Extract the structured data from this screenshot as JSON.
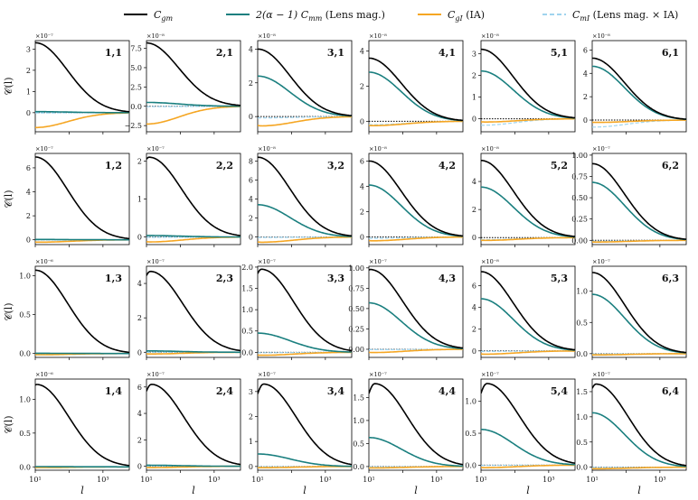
{
  "chart_data": {
    "type": "line",
    "layout": "4 rows x 6 columns grid of panels",
    "legend": [
      {
        "name": "C_gm",
        "label_main": "C",
        "label_sub": "gm",
        "color": "#000000",
        "dashed": false
      },
      {
        "name": "2(α−1) C_mm (Lens mag.)",
        "label_pre": "2(α − 1) C",
        "label_sub": "mm",
        "label_post": " (Lens mag.)",
        "color": "#1a7f7f",
        "dashed": false
      },
      {
        "name": "C_gI (IA)",
        "label_main": "C",
        "label_sub": "gI",
        "label_post": " (IA)",
        "color": "#f5a623",
        "dashed": false
      },
      {
        "name": "C_mI (Lens mag. × IA)",
        "label_main": "C",
        "label_sub": "mI",
        "label_post": " (Lens mag. × IA)",
        "color": "#9fd4ee",
        "dashed": true
      }
    ],
    "legend_placement": "top-center",
    "xlabel": "l",
    "ylabel": "𝒞(l)",
    "xscale": "log",
    "xlim": [
      10,
      6000
    ],
    "xticks": [
      "10¹",
      "10³"
    ],
    "panels": [
      {
        "label": "1,1",
        "row": 1,
        "col": 1,
        "exponent": "×10⁻⁷",
        "ylim": [
          -0.9,
          3.4
        ],
        "yticks": [
          {
            "v": 0,
            "t": "0"
          },
          {
            "v": 1,
            "t": "1"
          },
          {
            "v": 2,
            "t": "2"
          },
          {
            "v": 3,
            "t": "3"
          }
        ],
        "gm": {
          "a": 3.3,
          "peak": 10
        },
        "mm": {
          "a": 0.05,
          "peak": 10
        },
        "gI": {
          "a": -0.7,
          "peak": 10
        },
        "mI": {
          "a": -0.01,
          "peak": 10
        }
      },
      {
        "label": "2,1",
        "row": 1,
        "col": 2,
        "exponent": "×10⁻⁸",
        "ylim": [
          -3.3,
          8.5
        ],
        "yticks": [
          {
            "v": -2.5,
            "t": "−2.5"
          },
          {
            "v": 0,
            "t": "0.0"
          },
          {
            "v": 2.5,
            "t": "2.5"
          },
          {
            "v": 5,
            "t": "5.0"
          },
          {
            "v": 7.5,
            "t": "7.5"
          }
        ],
        "gm": {
          "a": 8.2,
          "peak": 10
        },
        "mm": {
          "a": 0.5,
          "peak": 10
        },
        "gI": {
          "a": -2.3,
          "peak": 10
        },
        "mI": {
          "a": -0.05,
          "peak": 10
        }
      },
      {
        "label": "3,1",
        "row": 1,
        "col": 3,
        "exponent": "×10⁻⁸",
        "ylim": [
          -0.9,
          4.5
        ],
        "yticks": [
          {
            "v": 0,
            "t": "0"
          },
          {
            "v": 2,
            "t": "2"
          },
          {
            "v": 4,
            "t": "4"
          }
        ],
        "gm": {
          "a": 4.0,
          "peak": 10
        },
        "mm": {
          "a": 2.4,
          "peak": 10
        },
        "gI": {
          "a": -0.55,
          "peak": 13
        },
        "mI": {
          "a": -0.08,
          "peak": 13
        }
      },
      {
        "label": "4,1",
        "row": 1,
        "col": 4,
        "exponent": "×10⁻⁸",
        "ylim": [
          -0.6,
          4.6
        ],
        "yticks": [
          {
            "v": 0,
            "t": "0"
          },
          {
            "v": 2,
            "t": "2"
          },
          {
            "v": 4,
            "t": "4"
          }
        ],
        "gm": {
          "a": 3.6,
          "peak": 10
        },
        "mm": {
          "a": 2.8,
          "peak": 10
        },
        "gI": {
          "a": -0.25,
          "peak": 13
        },
        "mI": {
          "a": -0.2,
          "peak": 13
        }
      },
      {
        "label": "5,1",
        "row": 1,
        "col": 5,
        "exponent": "×10⁻⁸",
        "ylim": [
          -0.6,
          3.6
        ],
        "yticks": [
          {
            "v": 0,
            "t": "0"
          },
          {
            "v": 1,
            "t": "1"
          },
          {
            "v": 2,
            "t": "2"
          },
          {
            "v": 3,
            "t": "3"
          }
        ],
        "gm": {
          "a": 3.2,
          "peak": 10
        },
        "mm": {
          "a": 2.2,
          "peak": 10
        },
        "gI": {
          "a": -0.15,
          "peak": 13
        },
        "mI": {
          "a": -0.3,
          "peak": 11
        }
      },
      {
        "label": "6,1",
        "row": 1,
        "col": 6,
        "exponent": "×10⁻⁸",
        "ylim": [
          -1.0,
          6.8
        ],
        "yticks": [
          {
            "v": 0,
            "t": "0"
          },
          {
            "v": 2,
            "t": "2"
          },
          {
            "v": 4,
            "t": "4"
          },
          {
            "v": 6,
            "t": "6"
          }
        ],
        "gm": {
          "a": 5.3,
          "peak": 10
        },
        "mm": {
          "a": 4.6,
          "peak": 10
        },
        "gI": {
          "a": -0.2,
          "peak": 13
        },
        "mI": {
          "a": -0.6,
          "peak": 11
        }
      },
      {
        "label": "1,2",
        "row": 2,
        "col": 1,
        "exponent": "×10⁻⁷",
        "ylim": [
          -0.4,
          7.2
        ],
        "yticks": [
          {
            "v": 0,
            "t": "0"
          },
          {
            "v": 2,
            "t": "2"
          },
          {
            "v": 4,
            "t": "4"
          },
          {
            "v": 6,
            "t": "6"
          }
        ],
        "gm": {
          "a": 6.9,
          "peak": 10
        },
        "mm": {
          "a": 0.03,
          "peak": 10
        },
        "gI": {
          "a": -0.2,
          "peak": 13
        },
        "mI": {
          "a": -0.01,
          "peak": 10
        }
      },
      {
        "label": "2,2",
        "row": 2,
        "col": 2,
        "exponent": "×10⁻⁷",
        "ylim": [
          -0.2,
          2.2
        ],
        "yticks": [
          {
            "v": 0,
            "t": "0"
          },
          {
            "v": 1,
            "t": "1"
          },
          {
            "v": 2,
            "t": "2"
          }
        ],
        "gm": {
          "a": 2.1,
          "peak": 12
        },
        "mm": {
          "a": 0.04,
          "peak": 10
        },
        "gI": {
          "a": -0.13,
          "peak": 13
        },
        "mI": {
          "a": -0.01,
          "peak": 10
        }
      },
      {
        "label": "3,2",
        "row": 2,
        "col": 3,
        "exponent": "×10⁻⁸",
        "ylim": [
          -0.8,
          8.8
        ],
        "yticks": [
          {
            "v": 0,
            "t": "0"
          },
          {
            "v": 2,
            "t": "2"
          },
          {
            "v": 4,
            "t": "4"
          },
          {
            "v": 6,
            "t": "6"
          },
          {
            "v": 8,
            "t": "8"
          }
        ],
        "gm": {
          "a": 8.4,
          "peak": 10
        },
        "mm": {
          "a": 3.4,
          "peak": 10
        },
        "gI": {
          "a": -0.55,
          "peak": 13
        },
        "mI": {
          "a": -0.05,
          "peak": 13
        }
      },
      {
        "label": "4,2",
        "row": 2,
        "col": 4,
        "exponent": "×10⁻⁸",
        "ylim": [
          -0.6,
          6.6
        ],
        "yticks": [
          {
            "v": 0,
            "t": "0"
          },
          {
            "v": 2,
            "t": "2"
          },
          {
            "v": 4,
            "t": "4"
          },
          {
            "v": 6,
            "t": "6"
          }
        ],
        "gm": {
          "a": 6.0,
          "peak": 10
        },
        "mm": {
          "a": 4.1,
          "peak": 10
        },
        "gI": {
          "a": -0.3,
          "peak": 13
        },
        "mI": {
          "a": -0.1,
          "peak": 13
        }
      },
      {
        "label": "5,2",
        "row": 2,
        "col": 5,
        "exponent": "×10⁻⁸",
        "ylim": [
          -0.5,
          6.0
        ],
        "yticks": [
          {
            "v": 0,
            "t": "0"
          },
          {
            "v": 2,
            "t": "2"
          },
          {
            "v": 4,
            "t": "4"
          }
        ],
        "gm": {
          "a": 5.5,
          "peak": 10
        },
        "mm": {
          "a": 3.6,
          "peak": 10
        },
        "gI": {
          "a": -0.2,
          "peak": 13
        },
        "mI": {
          "a": -0.15,
          "peak": 13
        }
      },
      {
        "label": "6,2",
        "row": 2,
        "col": 6,
        "exponent": "×10⁻⁷",
        "ylim": [
          -0.05,
          1.02
        ],
        "yticks": [
          {
            "v": 0,
            "t": "0.00"
          },
          {
            "v": 0.25,
            "t": "0.25"
          },
          {
            "v": 0.5,
            "t": "0.50"
          },
          {
            "v": 0.75,
            "t": "0.75"
          },
          {
            "v": 1.0,
            "t": "1.00"
          }
        ],
        "gm": {
          "a": 0.9,
          "peak": 10
        },
        "mm": {
          "a": 0.68,
          "peak": 10
        },
        "gI": {
          "a": -0.02,
          "peak": 13
        },
        "mI": {
          "a": -0.01,
          "peak": 13
        }
      },
      {
        "label": "1,3",
        "row": 3,
        "col": 1,
        "exponent": "×10⁻⁶",
        "ylim": [
          -0.05,
          1.12
        ],
        "yticks": [
          {
            "v": 0,
            "t": "0.0"
          },
          {
            "v": 0.5,
            "t": "0.5"
          },
          {
            "v": 1.0,
            "t": "1.0"
          }
        ],
        "gm": {
          "a": 1.07,
          "peak": 10
        },
        "mm": {
          "a": 0.003,
          "peak": 10
        },
        "gI": {
          "a": -0.015,
          "peak": 13
        },
        "mI": {
          "a": 0,
          "peak": 10
        }
      },
      {
        "label": "2,3",
        "row": 3,
        "col": 2,
        "exponent": "×10⁻⁷",
        "ylim": [
          -0.3,
          5.0
        ],
        "yticks": [
          {
            "v": 0,
            "t": "0"
          },
          {
            "v": 2,
            "t": "2"
          },
          {
            "v": 4,
            "t": "4"
          }
        ],
        "gm": {
          "a": 4.7,
          "peak": 13
        },
        "mm": {
          "a": 0.08,
          "peak": 10
        },
        "gI": {
          "a": -0.1,
          "peak": 13
        },
        "mI": {
          "a": -0.01,
          "peak": 10
        }
      },
      {
        "label": "3,3",
        "row": 3,
        "col": 3,
        "exponent": "×10⁻⁷",
        "ylim": [
          -0.12,
          2.02
        ],
        "yticks": [
          {
            "v": 0,
            "t": "0.0"
          },
          {
            "v": 0.5,
            "t": "0.5"
          },
          {
            "v": 1.0,
            "t": "1.0"
          },
          {
            "v": 1.5,
            "t": "1.5"
          },
          {
            "v": 2.0,
            "t": "2.0"
          }
        ],
        "gm": {
          "a": 1.95,
          "peak": 13
        },
        "mm": {
          "a": 0.45,
          "peak": 10
        },
        "gI": {
          "a": -0.07,
          "peak": 13
        },
        "mI": {
          "a": -0.01,
          "peak": 13
        }
      },
      {
        "label": "4,3",
        "row": 3,
        "col": 4,
        "exponent": "×10⁻⁷",
        "ylim": [
          -0.1,
          1.02
        ],
        "yticks": [
          {
            "v": 0,
            "t": "0.00"
          },
          {
            "v": 0.25,
            "t": "0.25"
          },
          {
            "v": 0.5,
            "t": "0.50"
          },
          {
            "v": 0.75,
            "t": "0.75"
          },
          {
            "v": 1.0,
            "t": "1.00"
          }
        ],
        "gm": {
          "a": 0.98,
          "peak": 11
        },
        "mm": {
          "a": 0.57,
          "peak": 10
        },
        "gI": {
          "a": -0.04,
          "peak": 13
        },
        "mI": {
          "a": -0.005,
          "peak": 13
        }
      },
      {
        "label": "5,3",
        "row": 3,
        "col": 5,
        "exponent": "×10⁻⁸",
        "ylim": [
          -0.6,
          7.8
        ],
        "yticks": [
          {
            "v": 0,
            "t": "0"
          },
          {
            "v": 2,
            "t": "2"
          },
          {
            "v": 4,
            "t": "4"
          },
          {
            "v": 6,
            "t": "6"
          }
        ],
        "gm": {
          "a": 7.3,
          "peak": 10
        },
        "mm": {
          "a": 4.8,
          "peak": 10
        },
        "gI": {
          "a": -0.3,
          "peak": 13
        },
        "mI": {
          "a": -0.05,
          "peak": 13
        }
      },
      {
        "label": "6,3",
        "row": 3,
        "col": 6,
        "exponent": "×10⁻⁷",
        "ylim": [
          -0.06,
          1.4
        ],
        "yticks": [
          {
            "v": 0,
            "t": "0.0"
          },
          {
            "v": 0.5,
            "t": "0.5"
          },
          {
            "v": 1.0,
            "t": "1.0"
          }
        ],
        "gm": {
          "a": 1.3,
          "peak": 10
        },
        "mm": {
          "a": 0.95,
          "peak": 10
        },
        "gI": {
          "a": -0.02,
          "peak": 13
        },
        "mI": {
          "a": -0.005,
          "peak": 13
        }
      },
      {
        "label": "1,4",
        "row": 4,
        "col": 1,
        "exponent": "×10⁻⁶",
        "ylim": [
          -0.05,
          1.3
        ],
        "yticks": [
          {
            "v": 0,
            "t": "0.0"
          },
          {
            "v": 0.5,
            "t": "0.5"
          },
          {
            "v": 1.0,
            "t": "1.0"
          }
        ],
        "gm": {
          "a": 1.22,
          "peak": 11
        },
        "mm": {
          "a": 0.003,
          "peak": 10
        },
        "gI": {
          "a": -0.01,
          "peak": 13
        },
        "mI": {
          "a": 0,
          "peak": 10
        }
      },
      {
        "label": "2,4",
        "row": 4,
        "col": 2,
        "exponent": "×10⁻⁷",
        "ylim": [
          -0.3,
          6.6
        ],
        "yticks": [
          {
            "v": 0,
            "t": "0"
          },
          {
            "v": 2,
            "t": "2"
          },
          {
            "v": 4,
            "t": "4"
          },
          {
            "v": 6,
            "t": "6"
          }
        ],
        "gm": {
          "a": 6.2,
          "peak": 14
        },
        "mm": {
          "a": 0.08,
          "peak": 10
        },
        "gI": {
          "a": -0.1,
          "peak": 13
        },
        "mI": {
          "a": -0.01,
          "peak": 10
        }
      },
      {
        "label": "3,4",
        "row": 4,
        "col": 3,
        "exponent": "×10⁻⁷",
        "ylim": [
          -0.15,
          3.5
        ],
        "yticks": [
          {
            "v": 0,
            "t": "0"
          },
          {
            "v": 1,
            "t": "1"
          },
          {
            "v": 2,
            "t": "2"
          },
          {
            "v": 3,
            "t": "3"
          }
        ],
        "gm": {
          "a": 3.3,
          "peak": 15
        },
        "mm": {
          "a": 0.5,
          "peak": 10
        },
        "gI": {
          "a": -0.05,
          "peak": 13
        },
        "mI": {
          "a": -0.01,
          "peak": 13
        }
      },
      {
        "label": "4,4",
        "row": 4,
        "col": 4,
        "exponent": "×10⁻⁷",
        "ylim": [
          -0.08,
          1.9
        ],
        "yticks": [
          {
            "v": 0,
            "t": "0.0"
          },
          {
            "v": 0.5,
            "t": "0.5"
          },
          {
            "v": 1.0,
            "t": "1.0"
          },
          {
            "v": 1.5,
            "t": "1.5"
          }
        ],
        "gm": {
          "a": 1.8,
          "peak": 15
        },
        "mm": {
          "a": 0.63,
          "peak": 10
        },
        "gI": {
          "a": -0.03,
          "peak": 13
        },
        "mI": {
          "a": -0.005,
          "peak": 13
        }
      },
      {
        "label": "5,4",
        "row": 4,
        "col": 5,
        "exponent": "×10⁻⁷",
        "ylim": [
          -0.08,
          1.35
        ],
        "yticks": [
          {
            "v": 0,
            "t": "0.0"
          },
          {
            "v": 0.5,
            "t": "0.5"
          },
          {
            "v": 1.0,
            "t": "1.0"
          }
        ],
        "gm": {
          "a": 1.28,
          "peak": 15
        },
        "mm": {
          "a": 0.56,
          "peak": 10
        },
        "gI": {
          "a": -0.04,
          "peak": 13
        },
        "mI": {
          "a": -0.005,
          "peak": 13
        }
      },
      {
        "label": "6,4",
        "row": 4,
        "col": 6,
        "exponent": "×10⁻⁷",
        "ylim": [
          -0.06,
          1.75
        ],
        "yticks": [
          {
            "v": 0,
            "t": "0.0"
          },
          {
            "v": 0.5,
            "t": "0.5"
          },
          {
            "v": 1.0,
            "t": "1.0"
          },
          {
            "v": 1.5,
            "t": "1.5"
          }
        ],
        "gm": {
          "a": 1.65,
          "peak": 13
        },
        "mm": {
          "a": 1.08,
          "peak": 10
        },
        "gI": {
          "a": -0.03,
          "peak": 13
        },
        "mI": {
          "a": -0.005,
          "peak": 13
        }
      }
    ]
  }
}
